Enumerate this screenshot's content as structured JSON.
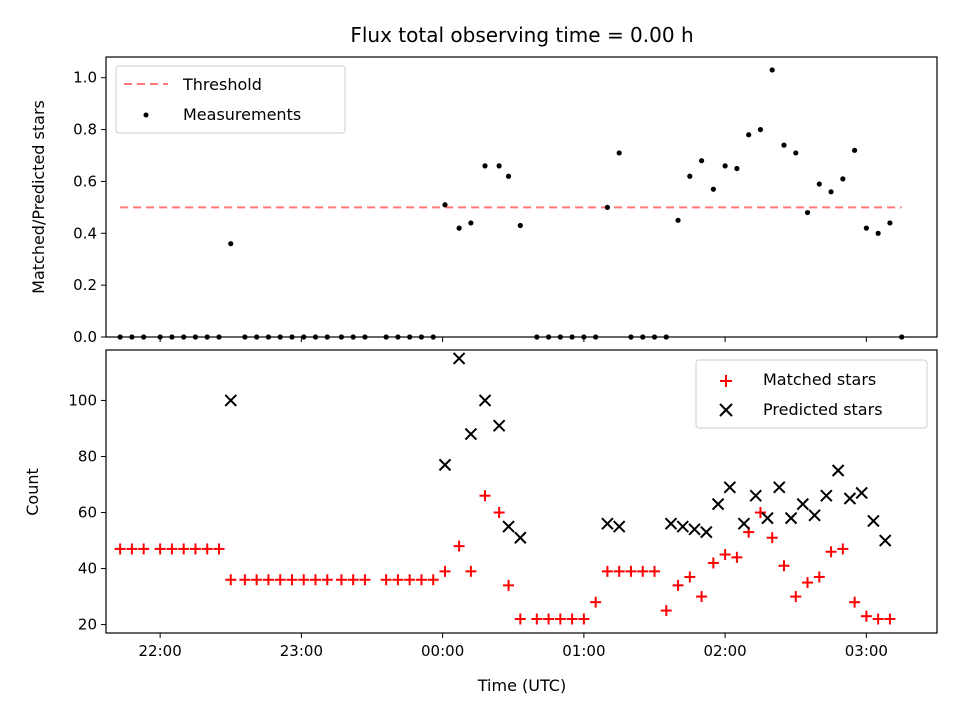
{
  "chart_data": [
    {
      "type": "scatter",
      "title": "Flux total observing time = 0.00 h",
      "xlabel": "",
      "ylabel": "Matched/Predicted stars",
      "ylim": [
        0,
        1.08
      ],
      "yticks": [
        "0.0",
        "0.2",
        "0.4",
        "0.6",
        "0.8",
        "1.0"
      ],
      "legend_position": "top-left",
      "threshold": {
        "name": "Threshold",
        "value": 0.5,
        "color": "#ff7777",
        "style": "dashed"
      },
      "series": [
        {
          "name": "Measurements",
          "color": "#000000",
          "marker": "dot",
          "points": [
            [
              "21:43",
              0
            ],
            [
              "21:48",
              0
            ],
            [
              "21:53",
              0
            ],
            [
              "22:00",
              0
            ],
            [
              "22:05",
              0
            ],
            [
              "22:10",
              0
            ],
            [
              "22:15",
              0
            ],
            [
              "22:20",
              0
            ],
            [
              "22:25",
              0
            ],
            [
              "22:30",
              0.36
            ],
            [
              "22:36",
              0
            ],
            [
              "22:41",
              0
            ],
            [
              "22:46",
              0
            ],
            [
              "22:51",
              0
            ],
            [
              "22:56",
              0
            ],
            [
              "23:01",
              0
            ],
            [
              "23:06",
              0
            ],
            [
              "23:11",
              0
            ],
            [
              "23:17",
              0
            ],
            [
              "23:22",
              0
            ],
            [
              "23:27",
              0
            ],
            [
              "23:36",
              0
            ],
            [
              "23:41",
              0
            ],
            [
              "23:46",
              0
            ],
            [
              "23:51",
              0
            ],
            [
              "23:56",
              0
            ],
            [
              "00:01",
              0.51
            ],
            [
              "00:07",
              0.42
            ],
            [
              "00:12",
              0.44
            ],
            [
              "00:18",
              0.66
            ],
            [
              "00:24",
              0.66
            ],
            [
              "00:28",
              0.62
            ],
            [
              "00:33",
              0.43
            ],
            [
              "00:40",
              0
            ],
            [
              "00:45",
              0
            ],
            [
              "00:50",
              0
            ],
            [
              "00:55",
              0
            ],
            [
              "01:00",
              0
            ],
            [
              "01:05",
              0
            ],
            [
              "01:10",
              0.5
            ],
            [
              "01:15",
              0.71
            ],
            [
              "01:20",
              0
            ],
            [
              "01:25",
              0
            ],
            [
              "01:30",
              0
            ],
            [
              "01:35",
              0
            ],
            [
              "01:40",
              0.45
            ],
            [
              "01:45",
              0.62
            ],
            [
              "01:50",
              0.68
            ],
            [
              "01:55",
              0.57
            ],
            [
              "02:00",
              0.66
            ],
            [
              "02:05",
              0.65
            ],
            [
              "02:10",
              0.78
            ],
            [
              "02:15",
              0.8
            ],
            [
              "02:20",
              1.03
            ],
            [
              "02:25",
              0.74
            ],
            [
              "02:30",
              0.71
            ],
            [
              "02:35",
              0.48
            ],
            [
              "02:40",
              0.59
            ],
            [
              "02:45",
              0.56
            ],
            [
              "02:50",
              0.61
            ],
            [
              "02:55",
              0.72
            ],
            [
              "03:00",
              0.42
            ],
            [
              "03:05",
              0.4
            ],
            [
              "03:10",
              0.44
            ],
            [
              "03:15",
              0
            ]
          ]
        }
      ]
    },
    {
      "type": "scatter",
      "title": "",
      "xlabel": "Time (UTC)",
      "ylabel": "Count",
      "ylim": [
        17,
        118
      ],
      "yticks": [
        "20",
        "40",
        "60",
        "80",
        "100"
      ],
      "xlim": [
        "21:37",
        "03:30"
      ],
      "xticks": [
        "22:00",
        "23:00",
        "00:00",
        "01:00",
        "02:00",
        "03:00"
      ],
      "legend_position": "top-right",
      "series": [
        {
          "name": "Matched stars",
          "color": "#ff0000",
          "marker": "plus",
          "points": [
            [
              "21:43",
              47
            ],
            [
              "21:48",
              47
            ],
            [
              "21:53",
              47
            ],
            [
              "22:00",
              47
            ],
            [
              "22:05",
              47
            ],
            [
              "22:10",
              47
            ],
            [
              "22:15",
              47
            ],
            [
              "22:20",
              47
            ],
            [
              "22:25",
              47
            ],
            [
              "22:30",
              36
            ],
            [
              "22:36",
              36
            ],
            [
              "22:41",
              36
            ],
            [
              "22:46",
              36
            ],
            [
              "22:51",
              36
            ],
            [
              "22:56",
              36
            ],
            [
              "23:01",
              36
            ],
            [
              "23:06",
              36
            ],
            [
              "23:11",
              36
            ],
            [
              "23:17",
              36
            ],
            [
              "23:22",
              36
            ],
            [
              "23:27",
              36
            ],
            [
              "23:36",
              36
            ],
            [
              "23:41",
              36
            ],
            [
              "23:46",
              36
            ],
            [
              "23:51",
              36
            ],
            [
              "23:56",
              36
            ],
            [
              "00:01",
              39
            ],
            [
              "00:07",
              48
            ],
            [
              "00:12",
              39
            ],
            [
              "00:18",
              66
            ],
            [
              "00:24",
              60
            ],
            [
              "00:28",
              34
            ],
            [
              "00:33",
              22
            ],
            [
              "00:40",
              22
            ],
            [
              "00:45",
              22
            ],
            [
              "00:50",
              22
            ],
            [
              "00:55",
              22
            ],
            [
              "01:00",
              22
            ],
            [
              "01:05",
              28
            ],
            [
              "01:10",
              39
            ],
            [
              "01:15",
              39
            ],
            [
              "01:20",
              39
            ],
            [
              "01:25",
              39
            ],
            [
              "01:30",
              39
            ],
            [
              "01:35",
              25
            ],
            [
              "01:40",
              34
            ],
            [
              "01:45",
              37
            ],
            [
              "01:50",
              30
            ],
            [
              "01:55",
              42
            ],
            [
              "02:00",
              45
            ],
            [
              "02:05",
              44
            ],
            [
              "02:10",
              53
            ],
            [
              "02:15",
              60
            ],
            [
              "02:20",
              51
            ],
            [
              "02:25",
              41
            ],
            [
              "02:30",
              30
            ],
            [
              "02:35",
              35
            ],
            [
              "02:40",
              37
            ],
            [
              "02:45",
              46
            ],
            [
              "02:50",
              47
            ],
            [
              "02:55",
              28
            ],
            [
              "03:00",
              23
            ],
            [
              "03:05",
              22
            ],
            [
              "03:10",
              22
            ]
          ]
        },
        {
          "name": "Predicted stars",
          "color": "#000000",
          "marker": "x",
          "points": [
            [
              "22:30",
              100
            ],
            [
              "00:01",
              77
            ],
            [
              "00:07",
              115
            ],
            [
              "00:12",
              88
            ],
            [
              "00:18",
              100
            ],
            [
              "00:24",
              91
            ],
            [
              "00:28",
              55
            ],
            [
              "00:33",
              51
            ],
            [
              "01:10",
              56
            ],
            [
              "01:15",
              55
            ],
            [
              "01:37",
              56
            ],
            [
              "01:42",
              55
            ],
            [
              "01:47",
              54
            ],
            [
              "01:52",
              53
            ],
            [
              "01:57",
              63
            ],
            [
              "02:02",
              69
            ],
            [
              "02:08",
              56
            ],
            [
              "02:13",
              66
            ],
            [
              "02:18",
              58
            ],
            [
              "02:23",
              69
            ],
            [
              "02:28",
              58
            ],
            [
              "02:33",
              63
            ],
            [
              "02:38",
              59
            ],
            [
              "02:43",
              66
            ],
            [
              "02:48",
              75
            ],
            [
              "02:53",
              65
            ],
            [
              "02:58",
              67
            ],
            [
              "03:03",
              57
            ],
            [
              "03:08",
              50
            ]
          ]
        }
      ]
    }
  ]
}
